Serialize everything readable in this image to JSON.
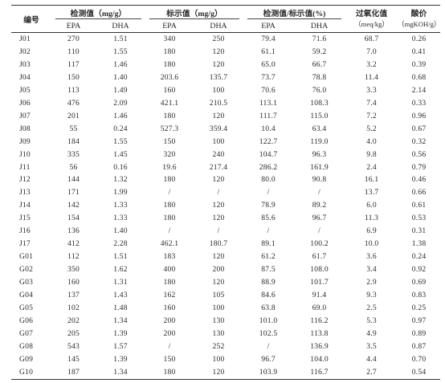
{
  "table": {
    "headers": {
      "id": "编号",
      "measured": "检测值（mg/g）",
      "labeled": "标示值（mg/g）",
      "ratio": "检测值/标示值(%)",
      "peroxide_line1": "过氧化值",
      "peroxide_line2": "（meq/kg）",
      "acid_line1": "酸价",
      "acid_line2": "（mgKOH/g）",
      "epa": "EPA",
      "dha": "DHA"
    },
    "rows": [
      [
        "J01",
        "270",
        "1.51",
        "340",
        "250",
        "79.4",
        "71.6",
        "68.7",
        "0.26"
      ],
      [
        "J02",
        "110",
        "1.55",
        "180",
        "120",
        "61.1",
        "59.2",
        "7.0",
        "0.41"
      ],
      [
        "J03",
        "117",
        "1.46",
        "180",
        "120",
        "65.0",
        "66.7",
        "3.2",
        "0.39"
      ],
      [
        "J04",
        "150",
        "1.40",
        "203.6",
        "135.7",
        "73.7",
        "78.8",
        "11.4",
        "0.68"
      ],
      [
        "J05",
        "113",
        "1.49",
        "160",
        "100",
        "70.6",
        "76.0",
        "3.3",
        "2.14"
      ],
      [
        "J06",
        "476",
        "2.09",
        "421.1",
        "210.5",
        "113.1",
        "108.3",
        "7.4",
        "0.33"
      ],
      [
        "J07",
        "201",
        "1.46",
        "180",
        "120",
        "111.7",
        "115.0",
        "7.2",
        "0.96"
      ],
      [
        "J08",
        "55",
        "0.24",
        "527.3",
        "359.4",
        "10.4",
        "63.4",
        "5.2",
        "0.67"
      ],
      [
        "J09",
        "184",
        "1.55",
        "150",
        "100",
        "122.7",
        "119.0",
        "4.0",
        "0.32"
      ],
      [
        "J10",
        "335",
        "1.45",
        "320",
        "240",
        "104.7",
        "96.3",
        "9.8",
        "0.56"
      ],
      [
        "J11",
        "56",
        "0.16",
        "19.6",
        "217.4",
        "286.2",
        "161.9",
        "2.4",
        "0.79"
      ],
      [
        "J12",
        "144",
        "1.32",
        "180",
        "120",
        "80.0",
        "90.8",
        "16.1",
        "0.46"
      ],
      [
        "J13",
        "171",
        "1.99",
        "/",
        "/",
        "/",
        "/",
        "13.7",
        "0.66"
      ],
      [
        "J14",
        "142",
        "1.33",
        "180",
        "120",
        "78.9",
        "89.2",
        "6.0",
        "0.61"
      ],
      [
        "J15",
        "154",
        "1.33",
        "180",
        "120",
        "85.6",
        "96.7",
        "11.3",
        "0.53"
      ],
      [
        "J16",
        "136",
        "1.40",
        "/",
        "/",
        "/",
        "/",
        "6.9",
        "0.31"
      ],
      [
        "J17",
        "412",
        "2.28",
        "462.1",
        "180.7",
        "89.1",
        "100.2",
        "10.0",
        "1.38"
      ],
      [
        "G01",
        "112",
        "1.51",
        "183",
        "120",
        "61.2",
        "61.7",
        "3.6",
        "0.24"
      ],
      [
        "G02",
        "350",
        "1.62",
        "400",
        "200",
        "87.5",
        "108.0",
        "3.4",
        "0.92"
      ],
      [
        "G03",
        "160",
        "1.31",
        "180",
        "120",
        "88.9",
        "101.7",
        "2.9",
        "0.69"
      ],
      [
        "G04",
        "137",
        "1.43",
        "162",
        "105",
        "84.6",
        "91.4",
        "9.3",
        "0.83"
      ],
      [
        "G05",
        "102",
        "1.48",
        "160",
        "100",
        "63.8",
        "69.0",
        "2.5",
        "0.25"
      ],
      [
        "G06",
        "202",
        "1.34",
        "200",
        "130",
        "101.0",
        "116.2",
        "5.3",
        "0.97"
      ],
      [
        "G07",
        "205",
        "1.39",
        "200",
        "130",
        "102.5",
        "113.8",
        "4.9",
        "0.89"
      ],
      [
        "G08",
        "543",
        "1.57",
        "/",
        "252",
        "/",
        "136.9",
        "3.5",
        "0.87"
      ],
      [
        "G09",
        "145",
        "1.39",
        "150",
        "100",
        "96.7",
        "104.0",
        "4.4",
        "0.70"
      ],
      [
        "G10",
        "187",
        "1.34",
        "180",
        "120",
        "103.9",
        "116.7",
        "2.7",
        "0.54"
      ]
    ]
  }
}
